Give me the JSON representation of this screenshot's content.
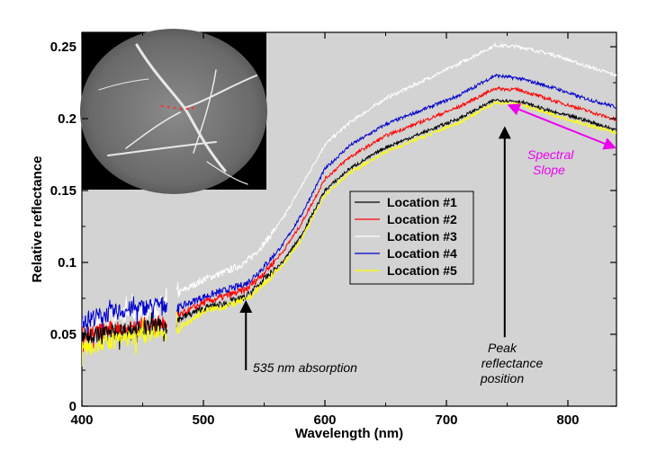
{
  "chart_data": {
    "type": "line",
    "xlabel": "Wavelength (nm)",
    "ylabel": "Relative reflectance",
    "xlim": [
      400,
      840
    ],
    "ylim": [
      0,
      0.26
    ],
    "x_ticks": [
      400,
      500,
      600,
      700,
      800
    ],
    "y_ticks": [
      0,
      0.05,
      0.1,
      0.15,
      0.2,
      0.25
    ],
    "y_tick_labels": [
      "0",
      "0.05",
      "0.1",
      "0.15",
      "0.2",
      "0.25"
    ],
    "plot_background": "#d3d3d3",
    "legend_position": "center",
    "gap_range_nm": [
      470,
      478
    ],
    "series": [
      {
        "name": "Location #1",
        "color": "#000000",
        "x": [
          400,
          430,
          460,
          470,
          478,
          500,
          520,
          535,
          550,
          565,
          580,
          600,
          620,
          650,
          680,
          710,
          740,
          760,
          790,
          810,
          840
        ],
        "y": [
          0.048,
          0.052,
          0.055,
          0.056,
          0.06,
          0.068,
          0.072,
          0.076,
          0.088,
          0.1,
          0.118,
          0.15,
          0.165,
          0.18,
          0.19,
          0.2,
          0.213,
          0.212,
          0.204,
          0.2,
          0.192
        ]
      },
      {
        "name": "Location #2",
        "color": "#ff0000",
        "x": [
          400,
          430,
          460,
          470,
          478,
          500,
          520,
          535,
          550,
          565,
          580,
          600,
          620,
          650,
          680,
          710,
          740,
          760,
          790,
          810,
          840
        ],
        "y": [
          0.05,
          0.054,
          0.057,
          0.058,
          0.062,
          0.072,
          0.077,
          0.081,
          0.093,
          0.107,
          0.126,
          0.158,
          0.173,
          0.188,
          0.198,
          0.208,
          0.221,
          0.22,
          0.212,
          0.207,
          0.199
        ]
      },
      {
        "name": "Location #3",
        "color": "#ffffff",
        "x": [
          400,
          430,
          460,
          470,
          478,
          500,
          520,
          535,
          550,
          565,
          580,
          600,
          620,
          650,
          680,
          710,
          740,
          760,
          790,
          810,
          840
        ],
        "y": [
          0.058,
          0.063,
          0.068,
          0.07,
          0.078,
          0.088,
          0.094,
          0.1,
          0.113,
          0.13,
          0.152,
          0.182,
          0.197,
          0.214,
          0.226,
          0.238,
          0.251,
          0.25,
          0.244,
          0.238,
          0.23
        ]
      },
      {
        "name": "Location #4",
        "color": "#0000cc",
        "x": [
          400,
          430,
          460,
          470,
          478,
          500,
          520,
          535,
          550,
          565,
          580,
          600,
          620,
          650,
          680,
          710,
          740,
          760,
          790,
          810,
          840
        ],
        "y": [
          0.06,
          0.066,
          0.07,
          0.071,
          0.068,
          0.076,
          0.081,
          0.085,
          0.097,
          0.112,
          0.132,
          0.165,
          0.181,
          0.196,
          0.206,
          0.216,
          0.23,
          0.228,
          0.221,
          0.215,
          0.208
        ]
      },
      {
        "name": "Location #5",
        "color": "#ffff00",
        "x": [
          400,
          430,
          460,
          470,
          478,
          500,
          520,
          535,
          550,
          565,
          580,
          600,
          620,
          650,
          680,
          710,
          740,
          760,
          790,
          810,
          840
        ],
        "y": [
          0.04,
          0.046,
          0.05,
          0.051,
          0.053,
          0.066,
          0.07,
          0.074,
          0.085,
          0.098,
          0.115,
          0.147,
          0.162,
          0.177,
          0.187,
          0.197,
          0.211,
          0.21,
          0.202,
          0.197,
          0.19
        ]
      }
    ],
    "annotations": [
      {
        "text": "535 nm absorption",
        "arrow_x": 535,
        "arrow_y_from": 0.025,
        "arrow_y_to": 0.072,
        "color": "#000000"
      },
      {
        "lines": [
          "Peak",
          "reflectance",
          "position"
        ],
        "arrow_x": 748,
        "arrow_y_from": 0.048,
        "arrow_y_to": 0.193,
        "color": "#000000"
      },
      {
        "lines": [
          "Spectral",
          "Slope"
        ],
        "arrow_x_from": 752,
        "arrow_y_from": 0.209,
        "arrow_x_to": 838,
        "arrow_y_to": 0.18,
        "color": "#ee00ee"
      }
    ]
  }
}
